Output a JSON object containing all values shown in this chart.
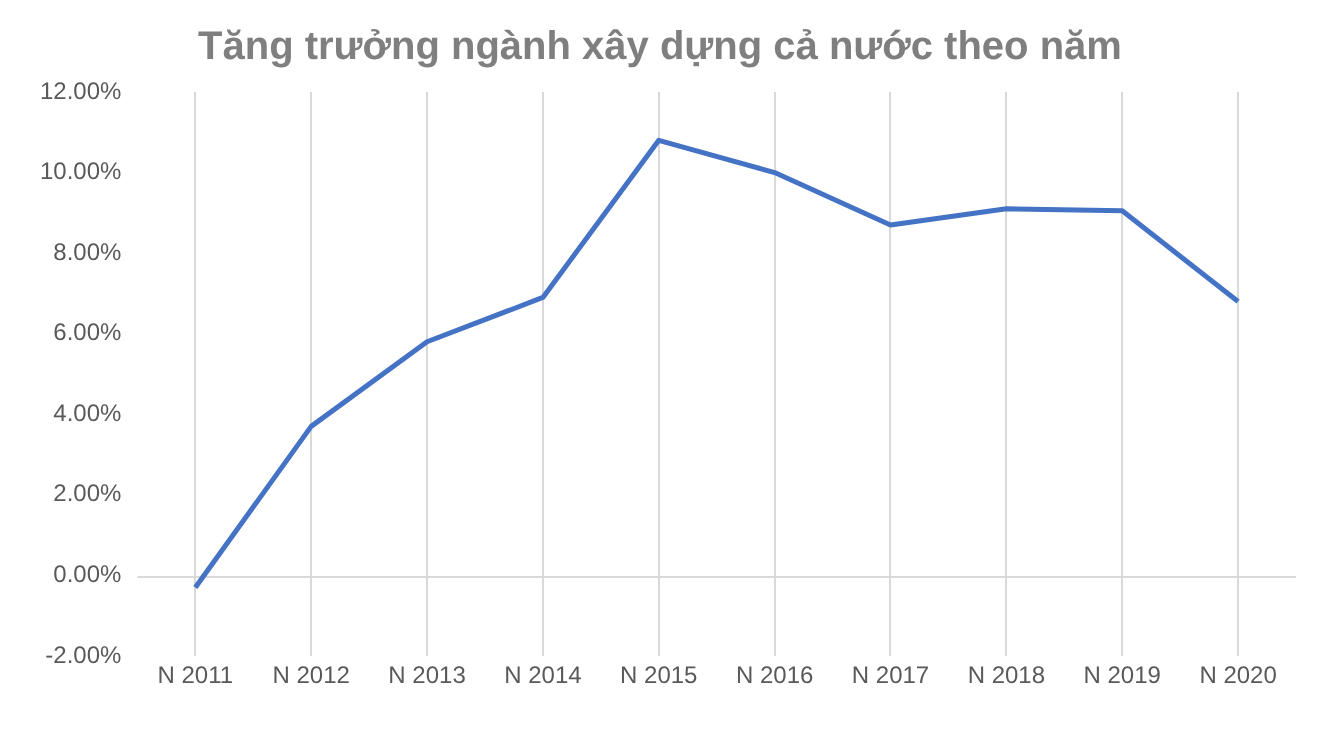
{
  "chart_data": {
    "type": "line",
    "title": "Tăng trưởng ngành xây dựng cả nước theo năm",
    "categories": [
      "N 2011",
      "N 2012",
      "N 2013",
      "N 2014",
      "N 2015",
      "N 2016",
      "N 2017",
      "N 2018",
      "N 2019",
      "N 2020"
    ],
    "series": [
      {
        "color": "#4472c4",
        "values": [
          -0.3,
          3.7,
          5.8,
          6.9,
          10.8,
          10.0,
          8.7,
          9.1,
          9.05,
          6.8
        ]
      }
    ],
    "ylim": [
      -2,
      12
    ],
    "yticks": [
      {
        "value": -2,
        "label": "-2.00%"
      },
      {
        "value": 0,
        "label": "0.00%"
      },
      {
        "value": 2,
        "label": "2.00%"
      },
      {
        "value": 4,
        "label": "4.00%"
      },
      {
        "value": 6,
        "label": "6.00%"
      },
      {
        "value": 8,
        "label": "8.00%"
      },
      {
        "value": 10,
        "label": "10.00%"
      },
      {
        "value": 12,
        "label": "12.00%"
      }
    ],
    "ref_lines": [
      {
        "axis": "y",
        "value": 0,
        "color": "#d9d9d9"
      }
    ],
    "grid": "x",
    "legend": false,
    "marker": "none",
    "line_style": "solid"
  }
}
